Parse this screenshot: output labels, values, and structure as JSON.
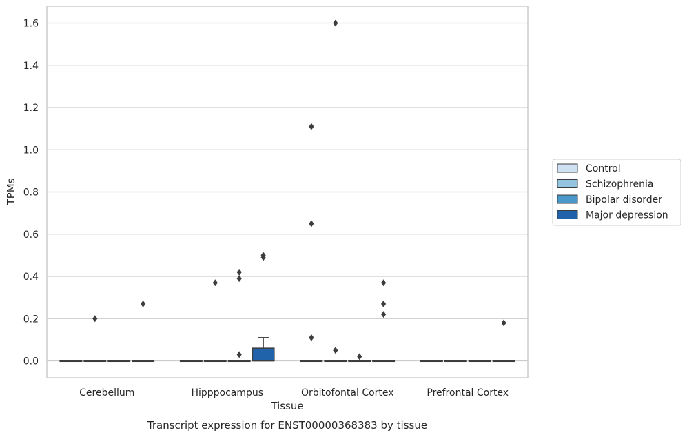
{
  "chart_data": {
    "type": "box",
    "xlabel": "Tissue",
    "ylabel": "TPMs",
    "caption": "Transcript expression for ENST00000368383 by tissue",
    "ylim": [
      -0.08,
      1.68
    ],
    "yticks": [
      0.0,
      0.2,
      0.4,
      0.6,
      0.8,
      1.0,
      1.2,
      1.4,
      1.6
    ],
    "ytick_labels": [
      "0.0",
      "0.2",
      "0.4",
      "0.6",
      "0.8",
      "1.0",
      "1.2",
      "1.4",
      "1.6"
    ],
    "grid": true,
    "legend_position": "right",
    "categories": [
      "Cerebellum",
      "Hipppocampus",
      "Orbitofontal Cortex",
      "Prefrontal Cortex"
    ],
    "series": [
      {
        "name": "Control",
        "color": "#d0e1f2",
        "boxes": [
          {
            "q1": 0,
            "median": 0,
            "q3": 0,
            "whisker_low": 0,
            "whisker_high": 0,
            "outliers": []
          },
          {
            "q1": 0,
            "median": 0,
            "q3": 0,
            "whisker_low": 0,
            "whisker_high": 0,
            "outliers": []
          },
          {
            "q1": 0,
            "median": 0,
            "q3": 0,
            "whisker_low": 0,
            "whisker_high": 0,
            "outliers": [
              0.65,
              0.11,
              1.11
            ]
          },
          {
            "q1": 0,
            "median": 0,
            "q3": 0,
            "whisker_low": 0,
            "whisker_high": 0,
            "outliers": []
          }
        ]
      },
      {
        "name": "Schizophrenia",
        "color": "#94c4df",
        "boxes": [
          {
            "q1": 0,
            "median": 0,
            "q3": 0,
            "whisker_low": 0,
            "whisker_high": 0,
            "outliers": [
              0.2
            ]
          },
          {
            "q1": 0,
            "median": 0,
            "q3": 0,
            "whisker_low": 0,
            "whisker_high": 0,
            "outliers": [
              0.37
            ]
          },
          {
            "q1": 0,
            "median": 0,
            "q3": 0,
            "whisker_low": 0,
            "whisker_high": 0,
            "outliers": [
              1.6,
              0.05
            ]
          },
          {
            "q1": 0,
            "median": 0,
            "q3": 0,
            "whisker_low": 0,
            "whisker_high": 0,
            "outliers": []
          }
        ]
      },
      {
        "name": "Bipolar disorder",
        "color": "#4a98c9",
        "boxes": [
          {
            "q1": 0,
            "median": 0,
            "q3": 0,
            "whisker_low": 0,
            "whisker_high": 0,
            "outliers": []
          },
          {
            "q1": 0,
            "median": 0,
            "q3": 0,
            "whisker_low": 0,
            "whisker_high": 0,
            "outliers": [
              0.42,
              0.39,
              0.03
            ]
          },
          {
            "q1": 0,
            "median": 0,
            "q3": 0,
            "whisker_low": 0,
            "whisker_high": 0,
            "outliers": [
              0.02
            ]
          },
          {
            "q1": 0,
            "median": 0,
            "q3": 0,
            "whisker_low": 0,
            "whisker_high": 0,
            "outliers": []
          }
        ]
      },
      {
        "name": "Major depression",
        "color": "#2163aa",
        "boxes": [
          {
            "q1": 0,
            "median": 0,
            "q3": 0,
            "whisker_low": 0,
            "whisker_high": 0,
            "outliers": [
              0.27
            ]
          },
          {
            "q1": 0,
            "median": 0,
            "q3": 0.06,
            "whisker_low": 0,
            "whisker_high": 0.11,
            "outliers": [
              0.5,
              0.49
            ]
          },
          {
            "q1": 0,
            "median": 0,
            "q3": 0,
            "whisker_low": 0,
            "whisker_high": 0,
            "outliers": [
              0.37,
              0.27,
              0.22
            ]
          },
          {
            "q1": 0,
            "median": 0,
            "q3": 0,
            "whisker_low": 0,
            "whisker_high": 0,
            "outliers": [
              0.18
            ]
          }
        ]
      }
    ]
  }
}
